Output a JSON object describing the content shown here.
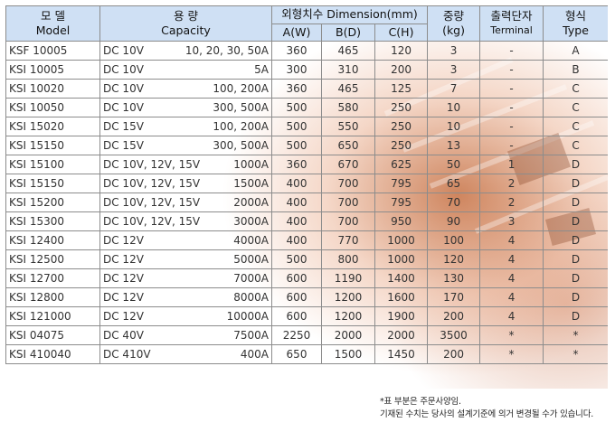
{
  "header": {
    "model_ko": "모 델",
    "model_en": "Model",
    "capacity_ko": "용 량",
    "capacity_en": "Capacity",
    "dimension": "외형치수 Dimension(mm)",
    "dim_a": "A(W)",
    "dim_b": "B(D)",
    "dim_c": "C(H)",
    "weight_ko": "중량",
    "weight_unit": "(kg)",
    "terminal_ko": "출력단자",
    "terminal_en": "Terminal",
    "type_ko": "형식",
    "type_en": "Type"
  },
  "rows": [
    {
      "model": "KSF 10005",
      "voltage": "DC 10V",
      "current": "10, 20, 30, 50A",
      "a": "360",
      "b": "465",
      "c": "120",
      "weight": "3",
      "terminal": "-",
      "type": "A"
    },
    {
      "model": "KSI 10005",
      "voltage": "DC 10V",
      "current": "5A",
      "a": "300",
      "b": "310",
      "c": "200",
      "weight": "3",
      "terminal": "-",
      "type": "B"
    },
    {
      "model": "KSI 10020",
      "voltage": "DC 10V",
      "current": "100, 200A",
      "a": "360",
      "b": "465",
      "c": "125",
      "weight": "7",
      "terminal": "-",
      "type": "C"
    },
    {
      "model": "KSI 10050",
      "voltage": "DC 10V",
      "current": "300, 500A",
      "a": "500",
      "b": "580",
      "c": "250",
      "weight": "10",
      "terminal": "-",
      "type": "C"
    },
    {
      "model": "KSI 15020",
      "voltage": "DC 15V",
      "current": "100, 200A",
      "a": "500",
      "b": "550",
      "c": "250",
      "weight": "10",
      "terminal": "-",
      "type": "C"
    },
    {
      "model": "KSI 15150",
      "voltage": "DC 15V",
      "current": "300, 500A",
      "a": "500",
      "b": "650",
      "c": "250",
      "weight": "13",
      "terminal": "-",
      "type": "C"
    },
    {
      "model": "KSI 15100",
      "voltage": "DC 10V, 12V, 15V",
      "current": "1000A",
      "a": "360",
      "b": "670",
      "c": "625",
      "weight": "50",
      "terminal": "1",
      "type": "D"
    },
    {
      "model": "KSI 15150",
      "voltage": "DC 10V, 12V, 15V",
      "current": "1500A",
      "a": "400",
      "b": "700",
      "c": "795",
      "weight": "65",
      "terminal": "2",
      "type": "D"
    },
    {
      "model": "KSI 15200",
      "voltage": "DC 10V, 12V, 15V",
      "current": "2000A",
      "a": "400",
      "b": "700",
      "c": "795",
      "weight": "70",
      "terminal": "2",
      "type": "D"
    },
    {
      "model": "KSI 15300",
      "voltage": "DC 10V, 12V, 15V",
      "current": "3000A",
      "a": "400",
      "b": "700",
      "c": "950",
      "weight": "90",
      "terminal": "3",
      "type": "D"
    },
    {
      "model": "KSI 12400",
      "voltage": "DC 12V",
      "current": "4000A",
      "a": "400",
      "b": "770",
      "c": "1000",
      "weight": "100",
      "terminal": "4",
      "type": "D"
    },
    {
      "model": "KSI 12500",
      "voltage": "DC 12V",
      "current": "5000A",
      "a": "500",
      "b": "800",
      "c": "1000",
      "weight": "120",
      "terminal": "4",
      "type": "D"
    },
    {
      "model": "KSI 12700",
      "voltage": "DC 12V",
      "current": "7000A",
      "a": "600",
      "b": "1190",
      "c": "1400",
      "weight": "130",
      "terminal": "4",
      "type": "D"
    },
    {
      "model": "KSI 12800",
      "voltage": "DC 12V",
      "current": "8000A",
      "a": "600",
      "b": "1200",
      "c": "1600",
      "weight": "170",
      "terminal": "4",
      "type": "D"
    },
    {
      "model": "KSI 121000",
      "voltage": "DC 12V",
      "current": "10000A",
      "a": "600",
      "b": "1200",
      "c": "1900",
      "weight": "200",
      "terminal": "4",
      "type": "D"
    },
    {
      "model": "KSI 04075",
      "voltage": "DC 40V",
      "current": "7500A",
      "a": "2250",
      "b": "2000",
      "c": "2000",
      "weight": "3500",
      "terminal": "*",
      "type": "*"
    },
    {
      "model": "KSI 410040",
      "voltage": "DC 410V",
      "current": "400A",
      "a": "650",
      "b": "1500",
      "c": "1450",
      "weight": "200",
      "terminal": "*",
      "type": "*"
    }
  ],
  "notes": {
    "line1": "*표 부분은 주문사양임.",
    "line2": "기재된 수치는 당사의 설계기준에 의거 변경될 수가 있습니다."
  }
}
